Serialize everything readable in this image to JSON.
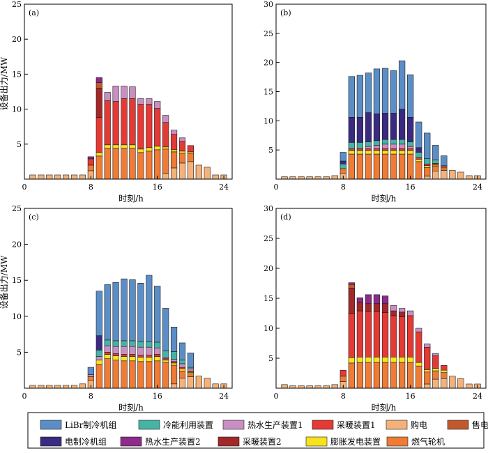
{
  "figure": {
    "ylabel_left": "设备出力/MW"
  },
  "legend": [
    {
      "key": "libr",
      "label": "LiBr制冷机组",
      "color": "#5b8ec7"
    },
    {
      "key": "cold",
      "label": "冷能利用装置",
      "color": "#45b4a4"
    },
    {
      "key": "hw1",
      "label": "热水生产装置1",
      "color": "#c98fc2"
    },
    {
      "key": "heat1",
      "label": "采暖装置1",
      "color": "#e53935"
    },
    {
      "key": "buy",
      "label": "购电",
      "color": "#f4b27a"
    },
    {
      "key": "sell",
      "label": "售电",
      "color": "#c05a2e"
    },
    {
      "key": "ec",
      "label": "电制冷机组",
      "color": "#3a2a82"
    },
    {
      "key": "hw2",
      "label": "热水生产装置2",
      "color": "#8e2a8a"
    },
    {
      "key": "heat2",
      "label": "采暖装置2",
      "color": "#a3282a"
    },
    {
      "key": "exp",
      "label": "膨胀发电装置",
      "color": "#f6e31e"
    },
    {
      "key": "gt",
      "label": "燃气轮机",
      "color": "#ef7b35"
    }
  ],
  "chart_data": [
    {
      "type": "bar",
      "panel_label": "(a)",
      "xlabel": "时刻/h",
      "ylabel": "设备出力/MW",
      "xlim": [
        0,
        25
      ],
      "ylim": [
        0,
        25
      ],
      "xticks": [
        0,
        8,
        16,
        24
      ],
      "yticks": [
        5,
        10,
        15,
        20,
        25
      ],
      "stacked": true,
      "x": [
        1,
        2,
        3,
        4,
        5,
        6,
        7,
        8,
        9,
        10,
        11,
        12,
        13,
        14,
        15,
        16,
        17,
        18,
        19,
        20,
        21,
        22,
        23,
        24
      ],
      "series": [
        {
          "key": "buy",
          "values": [
            0.6,
            0.6,
            0.6,
            0.6,
            0.6,
            0.6,
            0.6,
            1.2,
            0,
            0,
            0,
            0,
            0,
            0,
            0,
            0,
            0.8,
            1.6,
            2.3,
            2.5,
            2.0,
            1.7,
            0.6,
            0.6
          ]
        },
        {
          "key": "gt",
          "values": [
            0,
            0,
            0,
            0,
            0,
            0,
            0,
            0.8,
            3.3,
            4.4,
            4.4,
            4.4,
            4.4,
            3.8,
            4.0,
            4.2,
            3.5,
            2.3,
            1.4,
            1.2,
            0,
            0,
            0,
            0
          ]
        },
        {
          "key": "exp",
          "values": [
            0,
            0,
            0,
            0,
            0,
            0,
            0,
            0,
            0.5,
            0.5,
            0.5,
            0.5,
            0.5,
            0.5,
            0.5,
            0.5,
            0.3,
            0.3,
            0.3,
            0.2,
            0,
            0,
            0,
            0
          ]
        },
        {
          "key": "heat1",
          "values": [
            0,
            0,
            0,
            0,
            0,
            0,
            0,
            0.9,
            5.0,
            6.3,
            6.2,
            6.6,
            6.6,
            6.4,
            6.2,
            5.4,
            3.5,
            2.2,
            1.4,
            0.9,
            0,
            0,
            0,
            0
          ]
        },
        {
          "key": "heat2",
          "values": [
            0,
            0,
            0,
            0,
            0,
            0,
            0,
            0,
            4.2,
            0,
            0,
            0,
            0,
            0,
            0,
            0,
            0,
            0,
            0,
            0,
            0,
            0,
            0,
            0
          ]
        },
        {
          "key": "sell",
          "values": [
            0,
            0,
            0,
            0,
            0,
            0,
            0,
            0,
            0.8,
            0,
            0,
            0,
            0,
            0,
            0,
            0,
            0,
            0,
            0,
            0,
            0,
            0,
            0,
            0
          ]
        },
        {
          "key": "hw2",
          "values": [
            0,
            0,
            0,
            0,
            0,
            0,
            0,
            0.3,
            0.7,
            0,
            0,
            0,
            0,
            0,
            0,
            0,
            0,
            0,
            0,
            0,
            0,
            0,
            0,
            0
          ]
        },
        {
          "key": "hw1",
          "values": [
            0,
            0,
            0,
            0,
            0,
            0,
            0,
            0,
            0,
            1.2,
            2.2,
            1.8,
            1.7,
            0.8,
            0.8,
            1.0,
            1.0,
            0.6,
            0.5,
            0,
            0,
            0,
            0,
            0
          ]
        }
      ]
    },
    {
      "type": "bar",
      "panel_label": "(b)",
      "xlabel": "时刻/h",
      "ylabel": "",
      "xlim": [
        0,
        25
      ],
      "ylim": [
        0,
        30
      ],
      "xticks": [
        0,
        8,
        16,
        24
      ],
      "yticks": [
        5,
        10,
        15,
        20,
        25,
        30
      ],
      "stacked": true,
      "x": [
        1,
        2,
        3,
        4,
        5,
        6,
        7,
        8,
        9,
        10,
        11,
        12,
        13,
        14,
        15,
        16,
        17,
        18,
        19,
        20,
        21,
        22,
        23,
        24
      ],
      "series": [
        {
          "key": "buy",
          "values": [
            0.4,
            0.4,
            0.4,
            0.4,
            0.4,
            0.4,
            0.6,
            1.0,
            0,
            0,
            0,
            0,
            0,
            0,
            0,
            0,
            0,
            0.5,
            1.4,
            1.5,
            1.5,
            1.2,
            0.6,
            0.6
          ]
        },
        {
          "key": "gt",
          "values": [
            0,
            0,
            0,
            0,
            0,
            0,
            0,
            0.8,
            4.3,
            4.3,
            4.3,
            4.3,
            4.3,
            4.3,
            4.3,
            4.3,
            3.0,
            1.5,
            0.8,
            0.3,
            0,
            0,
            0,
            0
          ]
        },
        {
          "key": "exp",
          "values": [
            0,
            0,
            0,
            0,
            0,
            0,
            0,
            0,
            0.6,
            0.6,
            0.6,
            0.6,
            0.6,
            0.6,
            0.6,
            0.6,
            0.4,
            0.3,
            0.2,
            0.2,
            0,
            0,
            0,
            0
          ]
        },
        {
          "key": "heat1",
          "values": [
            0,
            0,
            0,
            0,
            0,
            0,
            0,
            0,
            0.3,
            0.3,
            0.3,
            0.3,
            0.3,
            0.3,
            0.3,
            0.3,
            0.3,
            0.3,
            0.3,
            0.3,
            0,
            0,
            0,
            0
          ]
        },
        {
          "key": "hw1",
          "values": [
            0,
            0,
            0,
            0,
            0,
            0,
            0,
            0,
            0,
            0,
            0.4,
            0.6,
            0.8,
            0.8,
            0.8,
            0.4,
            0,
            0,
            0,
            0,
            0,
            0,
            0,
            0
          ]
        },
        {
          "key": "cold",
          "values": [
            0,
            0,
            0,
            0,
            0,
            0,
            0,
            0.8,
            1.1,
            1.1,
            0.8,
            0.8,
            0.8,
            0.8,
            0.8,
            0.8,
            0.9,
            0.9,
            0.6,
            0,
            0,
            0,
            0,
            0
          ]
        },
        {
          "key": "ec",
          "values": [
            0,
            0,
            0,
            0,
            0,
            0,
            0,
            0.5,
            4.3,
            4.3,
            5.0,
            4.6,
            4.5,
            4.5,
            5.2,
            4.2,
            0.8,
            0,
            0,
            0,
            0,
            0,
            0,
            0
          ]
        },
        {
          "key": "libr",
          "values": [
            0,
            0,
            0,
            0,
            0,
            0,
            0,
            1.5,
            7.0,
            7.2,
            6.8,
            7.7,
            7.7,
            7.3,
            8.3,
            7.3,
            4.4,
            4.4,
            2.5,
            1.7,
            0,
            0,
            0,
            0
          ]
        }
      ]
    },
    {
      "type": "bar",
      "panel_label": "(c)",
      "xlabel": "时刻/h",
      "ylabel": "设备出力/MW",
      "xlim": [
        0,
        25
      ],
      "ylim": [
        0,
        25
      ],
      "xticks": [
        0,
        8,
        16,
        24
      ],
      "yticks": [
        5,
        10,
        15,
        20,
        25
      ],
      "stacked": true,
      "x": [
        1,
        2,
        3,
        4,
        5,
        6,
        7,
        8,
        9,
        10,
        11,
        12,
        13,
        14,
        15,
        16,
        17,
        18,
        19,
        20,
        21,
        22,
        23,
        24
      ],
      "series": [
        {
          "key": "buy",
          "values": [
            0.4,
            0.4,
            0.4,
            0.4,
            0.4,
            0.4,
            0.6,
            1.1,
            0,
            0,
            0,
            0,
            0,
            0,
            0,
            0,
            0,
            0.6,
            1.4,
            1.6,
            1.7,
            1.4,
            0.6,
            0.6
          ]
        },
        {
          "key": "gt",
          "values": [
            0,
            0,
            0,
            0,
            0,
            0,
            0,
            0.5,
            3.3,
            4.1,
            3.9,
            3.8,
            3.8,
            3.7,
            3.7,
            3.8,
            3.6,
            2.6,
            1.0,
            0.4,
            0,
            0,
            0,
            0
          ]
        },
        {
          "key": "exp",
          "values": [
            0,
            0,
            0,
            0,
            0,
            0,
            0,
            0,
            0.6,
            0.6,
            0.6,
            0.6,
            0.6,
            0.6,
            0.6,
            0.6,
            0.3,
            0.3,
            0.3,
            0.2,
            0,
            0,
            0,
            0
          ]
        },
        {
          "key": "heat1",
          "values": [
            0,
            0,
            0,
            0,
            0,
            0,
            0,
            0,
            0,
            0.3,
            0.3,
            0.3,
            0.3,
            0.3,
            0.3,
            0.3,
            0.2,
            0.2,
            0.2,
            0.2,
            0,
            0,
            0,
            0
          ]
        },
        {
          "key": "hw1",
          "values": [
            0,
            0,
            0,
            0,
            0,
            0,
            0,
            0.3,
            0.5,
            0.9,
            1.0,
            1.1,
            1.1,
            1.1,
            1.1,
            0.9,
            0.2,
            0.3,
            0.5,
            0.3,
            0,
            0,
            0,
            0
          ]
        },
        {
          "key": "cold",
          "values": [
            0,
            0,
            0,
            0,
            0,
            0,
            0,
            0,
            0.9,
            0.8,
            0.8,
            0.8,
            0.8,
            0.8,
            0.8,
            0.8,
            0.9,
            1.1,
            0.5,
            0.2,
            0,
            0,
            0,
            0
          ]
        },
        {
          "key": "ec",
          "values": [
            0,
            0,
            0,
            0,
            0,
            0,
            0,
            0,
            2.0,
            0,
            0,
            0,
            0,
            0,
            0,
            0,
            0,
            0,
            0,
            0,
            0,
            0,
            0,
            0
          ]
        },
        {
          "key": "libr",
          "values": [
            0,
            0,
            0,
            0,
            0,
            0,
            0,
            1.0,
            6.2,
            7.7,
            8.1,
            8.6,
            8.5,
            8.1,
            9.2,
            7.8,
            5.9,
            3.4,
            2.4,
            2.0,
            0,
            0,
            0,
            0
          ]
        }
      ]
    },
    {
      "type": "bar",
      "panel_label": "(d)",
      "xlabel": "时刻/h",
      "ylabel": "",
      "xlim": [
        0,
        25
      ],
      "ylim": [
        0,
        30
      ],
      "xticks": [
        0,
        8,
        16,
        24
      ],
      "yticks": [
        5,
        10,
        15,
        20,
        25,
        30
      ],
      "stacked": true,
      "x": [
        1,
        2,
        3,
        4,
        5,
        6,
        7,
        8,
        9,
        10,
        11,
        12,
        13,
        14,
        15,
        16,
        17,
        18,
        19,
        20,
        21,
        22,
        23,
        24
      ],
      "series": [
        {
          "key": "buy",
          "values": [
            0.6,
            0.4,
            0.4,
            0.4,
            0.4,
            0.4,
            0.6,
            1.1,
            0,
            0,
            0,
            0,
            0,
            0,
            0,
            0,
            0,
            0.7,
            1.5,
            1.6,
            2.0,
            1.6,
            0.7,
            0.7
          ]
        },
        {
          "key": "gt",
          "values": [
            0,
            0,
            0,
            0,
            0,
            0,
            0,
            0.9,
            4.2,
            4.3,
            4.3,
            4.3,
            4.3,
            4.3,
            4.3,
            4.3,
            3.7,
            2.0,
            1.4,
            1.0,
            0,
            0,
            0,
            0
          ]
        },
        {
          "key": "exp",
          "values": [
            0,
            0,
            0,
            0,
            0,
            0,
            0,
            0,
            0.9,
            0.9,
            0.9,
            0.9,
            0.9,
            0.9,
            0.9,
            0.9,
            0.6,
            0.4,
            0.4,
            0.4,
            0,
            0,
            0,
            0
          ]
        },
        {
          "key": "heat1",
          "values": [
            0,
            0,
            0,
            0,
            0,
            0,
            0,
            1.0,
            7.4,
            7.7,
            7.6,
            7.6,
            7.4,
            6.9,
            6.7,
            6.9,
            5.1,
            3.7,
            2.1,
            0.8,
            0,
            0,
            0,
            0
          ]
        },
        {
          "key": "heat2",
          "values": [
            0,
            0,
            0,
            0,
            0,
            0,
            0,
            0,
            4.2,
            1.4,
            1.3,
            1.3,
            1.5,
            0.8,
            0.8,
            0,
            0,
            0,
            0,
            0,
            0,
            0,
            0,
            0
          ]
        },
        {
          "key": "sell",
          "values": [
            0,
            0,
            0,
            0,
            0,
            0,
            0,
            0,
            0.6,
            0,
            0,
            0,
            0,
            0,
            0,
            0,
            0,
            0,
            0,
            0,
            0,
            0,
            0,
            0
          ]
        },
        {
          "key": "hw2",
          "values": [
            0,
            0,
            0,
            0,
            0,
            0,
            0,
            0,
            0.3,
            0.8,
            1.5,
            1.5,
            1.3,
            0,
            0,
            0,
            0,
            0,
            0,
            0,
            0,
            0,
            0,
            0
          ]
        },
        {
          "key": "hw1",
          "values": [
            0,
            0,
            0,
            0,
            0,
            0,
            0,
            0,
            0,
            0,
            0,
            0,
            0,
            0.9,
            0.6,
            0.8,
            0.6,
            0.6,
            0.4,
            0,
            0,
            0,
            0,
            0
          ]
        }
      ]
    }
  ]
}
